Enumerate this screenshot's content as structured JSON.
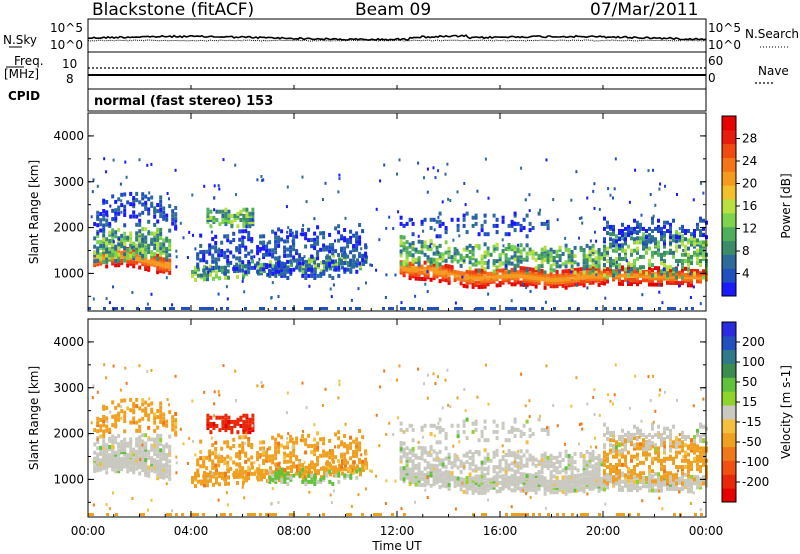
{
  "header": {
    "station": "Blackstone (fitACF)",
    "beam": "Beam 09",
    "date": "07/Mar/2011"
  },
  "strip_panel": {
    "left_labels": {
      "nsky": "N.Sky",
      "freq_line1": "Freq.",
      "freq_line2": "[MHz]",
      "cpid": "CPID"
    },
    "right_labels": {
      "nsearch": "N.Search",
      "nave": "Nave"
    },
    "noise_axis": {
      "top": "10^5",
      "bottom": "10^0"
    },
    "freq_axis": {
      "top": "10",
      "bottom": "8"
    },
    "nave_axis": {
      "top": "60",
      "bottom": "0"
    },
    "cpid_text": "normal (fast stereo) 153"
  },
  "x_axis": {
    "label": "Time UT",
    "ticks": [
      "00:00",
      "04:00",
      "08:00",
      "12:00",
      "16:00",
      "20:00",
      "00:00"
    ]
  },
  "colors": {
    "power_scale": [
      "#1a1aff",
      "#2050c0",
      "#2d6c9a",
      "#3a8c6a",
      "#4fae5c",
      "#7cd44c",
      "#b8e040",
      "#f2c02a",
      "#f59a1e",
      "#f47418",
      "#f04a10",
      "#e81c0c",
      "#e60000"
    ],
    "velocity_scale": [
      "#2a2ae0",
      "#2050c0",
      "#2e7a8a",
      "#3a8c50",
      "#5ec23a",
      "#8fd42a",
      "#c9c9c0",
      "#f4c040",
      "#f0a020",
      "#f07818",
      "#f05010",
      "#e82808",
      "#e60000"
    ]
  },
  "chart_data": [
    {
      "type": "heatmap",
      "name": "power",
      "xlabel": "Time UT",
      "ylabel": "Slant Range [km]",
      "yticks": [
        1000,
        2000,
        3000,
        4000
      ],
      "ylim": [
        180,
        4500
      ],
      "colorbar": {
        "label": "Power [dB]",
        "ticks": [
          "4",
          "8",
          "12",
          "16",
          "20",
          "24",
          "28"
        ],
        "range": [
          0,
          32
        ]
      }
    },
    {
      "type": "heatmap",
      "name": "velocity",
      "xlabel": "Time UT",
      "ylabel": "Slant Range [km]",
      "yticks": [
        1000,
        2000,
        3000,
        4000
      ],
      "ylim": [
        180,
        4500
      ],
      "colorbar": {
        "label": "Velocity [m s-1]",
        "ticks": [
          "200",
          "100",
          "50",
          "15",
          "-15",
          "-50",
          "-100",
          "-200"
        ],
        "range": [
          -250,
          250
        ]
      }
    }
  ]
}
